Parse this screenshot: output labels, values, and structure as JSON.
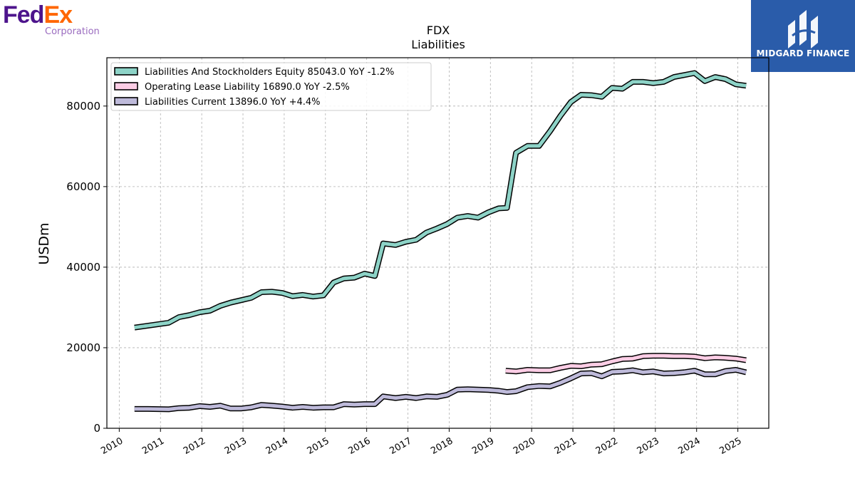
{
  "brand": {
    "fed": "Fed",
    "ex": "Ex",
    "sub": "Corporation",
    "color_fed": "#4d148c",
    "color_ex": "#ff6600",
    "color_sub": "#9a6bbf"
  },
  "watermark": {
    "text": "MIDGARD FINANCE",
    "bg": "#2a5caa"
  },
  "chart_data": {
    "type": "line",
    "title": "FDX",
    "subtitle": "Liabilities",
    "ylabel": "USDm",
    "xlabel": "",
    "xlim": [
      2009.7,
      2025.75
    ],
    "ylim": [
      0,
      92000
    ],
    "yticks": [
      0,
      20000,
      40000,
      60000,
      80000
    ],
    "ytick_labels": [
      "0",
      "20000",
      "40000",
      "60000",
      "80000"
    ],
    "xticks": [
      2010,
      2011,
      2012,
      2013,
      2014,
      2015,
      2016,
      2017,
      2018,
      2019,
      2020,
      2021,
      2022,
      2023,
      2024,
      2025
    ],
    "xtick_labels": [
      "2010",
      "2011",
      "2012",
      "2013",
      "2014",
      "2015",
      "2016",
      "2017",
      "2018",
      "2019",
      "2020",
      "2021",
      "2022",
      "2023",
      "2024",
      "2025"
    ],
    "grid": true,
    "legend_position": "top-left",
    "series": [
      {
        "name": "Liabilities And Stockholders Equity",
        "legend": "Liabilities And Stockholders Equity  85043.0 YoY -1.2%",
        "color": "#8dd3c7",
        "x": [
          2010.37,
          2011.2,
          2011.45,
          2011.7,
          2011.95,
          2012.2,
          2012.45,
          2012.7,
          2012.95,
          2013.2,
          2013.45,
          2013.7,
          2013.95,
          2014.2,
          2014.45,
          2014.7,
          2014.95,
          2015.2,
          2015.45,
          2015.7,
          2015.95,
          2016.2,
          2016.4,
          2016.7,
          2016.95,
          2017.2,
          2017.45,
          2017.7,
          2017.95,
          2018.2,
          2018.45,
          2018.7,
          2018.95,
          2019.2,
          2019.4,
          2019.62,
          2019.9,
          2020.18,
          2020.45,
          2020.7,
          2020.95,
          2021.2,
          2021.45,
          2021.7,
          2021.95,
          2022.2,
          2022.45,
          2022.7,
          2022.95,
          2023.2,
          2023.45,
          2023.7,
          2023.95,
          2024.2,
          2024.45,
          2024.7,
          2024.95,
          2025.2
        ],
        "values": [
          25000,
          26200,
          27600,
          28100,
          28800,
          29200,
          30400,
          31200,
          31800,
          32400,
          33800,
          33900,
          33600,
          32800,
          33100,
          32700,
          33000,
          36200,
          37200,
          37400,
          38400,
          37800,
          45900,
          45500,
          46300,
          46800,
          48600,
          49600,
          50700,
          52300,
          52700,
          52300,
          53600,
          54600,
          54700,
          68400,
          70100,
          70100,
          73800,
          77600,
          81000,
          82800,
          82700,
          82300,
          84500,
          84300,
          86000,
          86000,
          85700,
          86000,
          87200,
          87700,
          88200,
          86200,
          87200,
          86700,
          85400,
          85043
        ]
      },
      {
        "name": "Operating Lease Liability",
        "legend": "Operating Lease Liability  16890.0 YoY -2.5%",
        "color": "#fccde5",
        "x": [
          2019.37,
          2019.62,
          2019.9,
          2020.18,
          2020.45,
          2020.7,
          2020.95,
          2021.2,
          2021.45,
          2021.7,
          2021.95,
          2022.2,
          2022.45,
          2022.7,
          2022.95,
          2023.2,
          2023.45,
          2023.7,
          2023.95,
          2024.2,
          2024.45,
          2024.7,
          2024.95,
          2025.2
        ],
        "values": [
          14300,
          14100,
          14500,
          14400,
          14400,
          15000,
          15500,
          15400,
          15800,
          15900,
          16600,
          17200,
          17300,
          17900,
          18000,
          18000,
          17900,
          17900,
          17800,
          17400,
          17600,
          17500,
          17300,
          16890
        ]
      },
      {
        "name": "Liabilities Current",
        "legend": "Liabilities Current  13896.0 YoY +4.4%",
        "color": "#bebada",
        "x": [
          2010.37,
          2010.7,
          2011.2,
          2011.45,
          2011.7,
          2011.95,
          2012.2,
          2012.45,
          2012.7,
          2012.95,
          2013.2,
          2013.45,
          2013.7,
          2013.95,
          2014.2,
          2014.45,
          2014.7,
          2014.95,
          2015.2,
          2015.45,
          2015.7,
          2015.95,
          2016.2,
          2016.4,
          2016.7,
          2016.95,
          2017.2,
          2017.45,
          2017.7,
          2017.95,
          2018.2,
          2018.45,
          2018.7,
          2018.95,
          2019.2,
          2019.4,
          2019.62,
          2019.9,
          2020.18,
          2020.45,
          2020.7,
          2020.95,
          2021.2,
          2021.45,
          2021.7,
          2021.95,
          2022.2,
          2022.45,
          2022.7,
          2022.95,
          2023.2,
          2023.45,
          2023.7,
          2023.95,
          2024.2,
          2024.45,
          2024.7,
          2024.95,
          2025.2
        ],
        "values": [
          4800,
          4800,
          4700,
          5000,
          5100,
          5500,
          5300,
          5600,
          4900,
          4900,
          5200,
          5800,
          5600,
          5400,
          5100,
          5300,
          5100,
          5200,
          5200,
          6000,
          5900,
          6000,
          6000,
          7900,
          7500,
          7800,
          7500,
          7900,
          7800,
          8300,
          9600,
          9700,
          9600,
          9500,
          9300,
          9000,
          9200,
          10200,
          10500,
          10400,
          11300,
          12400,
          13600,
          13700,
          12900,
          14000,
          14100,
          14400,
          13900,
          14100,
          13600,
          13700,
          13900,
          14300,
          13400,
          13400,
          14200,
          14500,
          13896
        ]
      }
    ]
  }
}
